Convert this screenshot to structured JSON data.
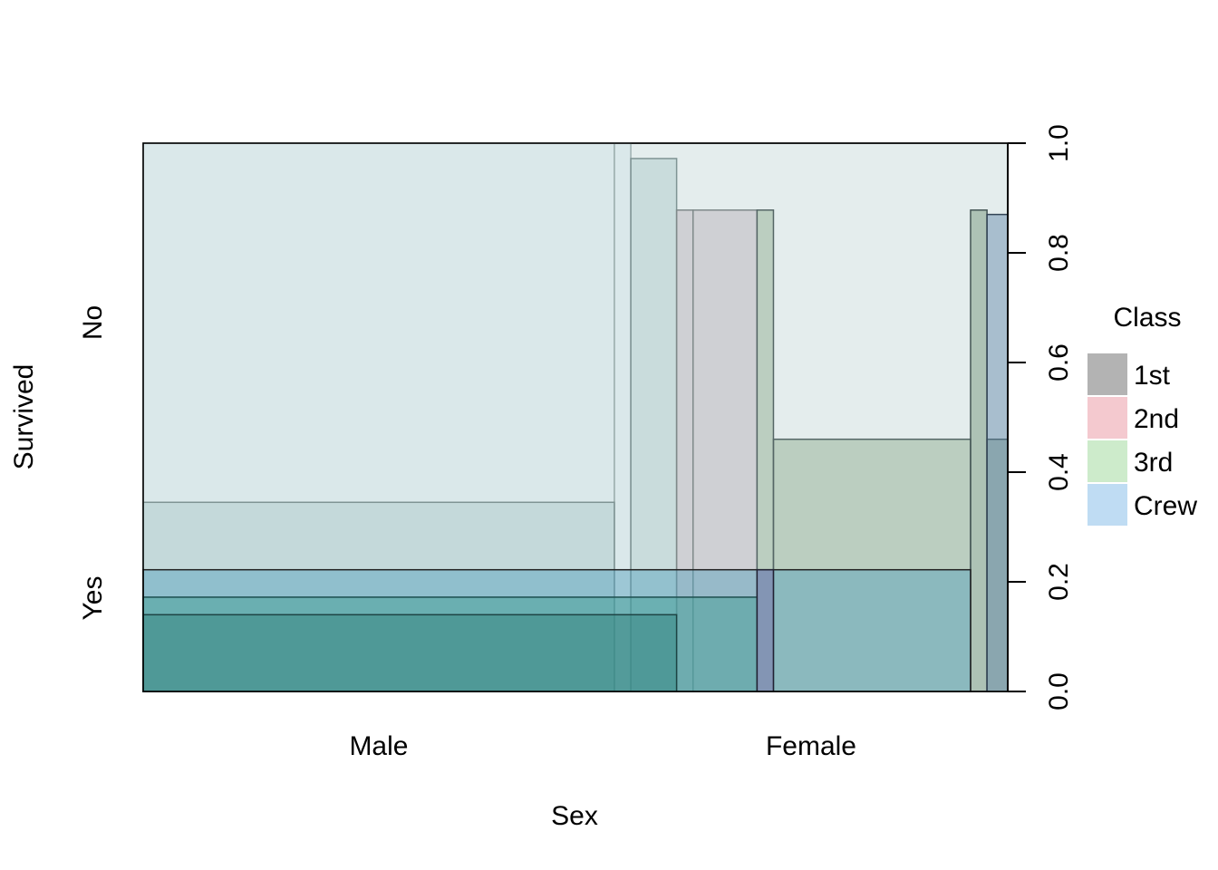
{
  "chart_data": {
    "type": "mosaic",
    "xlabel": "Sex",
    "ylabel": "Survived",
    "x_categories": [
      "Male",
      "Female"
    ],
    "y_categories": [
      "Yes",
      "No"
    ],
    "x_proportions": [
      0.545,
      0.455
    ],
    "ylim": [
      0,
      1
    ],
    "y_ticks": [
      "0.0",
      "0.2",
      "0.4",
      "0.6",
      "0.8",
      "1.0"
    ],
    "legend": {
      "title": "Class",
      "position": "right",
      "items": [
        {
          "label": "1st",
          "color": "#b3b3b3"
        },
        {
          "label": "2nd",
          "color": "#f4c9cf"
        },
        {
          "label": "3rd",
          "color": "#cdebcb"
        },
        {
          "label": "Crew",
          "color": "#bfdcf3"
        }
      ]
    },
    "layers": [
      {
        "name": "Crew",
        "fill": "#cfe3e6",
        "stroke": "#9fb0b0",
        "segments": [
          [
            0.0,
            0.545,
            0.0,
            1.0
          ],
          [
            0.545,
            0.564,
            0.0,
            1.0
          ]
        ]
      },
      {
        "name": "3rd",
        "fill": "#a9c7c7",
        "stroke": "#7f9494",
        "segments": [
          [
            0.0,
            0.545,
            0.0,
            0.345
          ],
          [
            0.564,
            0.617,
            0.0,
            0.972
          ]
        ]
      },
      {
        "name": "2nd",
        "fill": "#b5aeb6",
        "stroke": "#7f8a8a",
        "segments": [
          [
            0.617,
            0.636,
            0.0,
            0.878
          ],
          [
            0.636,
            0.71,
            0.0,
            0.878
          ]
        ]
      },
      {
        "name": "1st",
        "fill": "#8aa889",
        "stroke": "#556666",
        "segments": [
          [
            0.71,
            0.729,
            0.0,
            0.878
          ],
          [
            0.729,
            0.957,
            0.0,
            0.46
          ]
        ]
      },
      {
        "name": "1st-female",
        "fill": "#6b8d70",
        "stroke": "#445555",
        "segments": [
          [
            0.957,
            0.976,
            0.0,
            0.878
          ],
          [
            0.976,
            1.0,
            0.0,
            0.46
          ]
        ]
      },
      {
        "name": "Crew-female",
        "fill": "#5f86a8",
        "stroke": "#334455",
        "segments": [
          [
            0.976,
            1.0,
            0.0,
            0.87
          ]
        ]
      },
      {
        "name": "Crew-yes",
        "fill": "#53a0bc",
        "stroke": "#222222",
        "segments": [
          [
            0.0,
            0.957,
            0.0,
            0.222
          ]
        ]
      },
      {
        "name": "3rd-yes",
        "fill": "#3c9c90",
        "stroke": "#1d4f4f",
        "segments": [
          [
            0.0,
            0.71,
            0.0,
            0.172
          ]
        ]
      },
      {
        "name": "2nd-yes",
        "fill": "#2e7f78",
        "stroke": "#1d4444",
        "segments": [
          [
            0.0,
            0.617,
            0.0,
            0.14
          ]
        ]
      },
      {
        "name": "1st-yes",
        "fill": "#7a6aa8",
        "stroke": "#222233",
        "segments": [
          [
            0.71,
            0.729,
            0.0,
            0.222
          ]
        ]
      }
    ]
  }
}
